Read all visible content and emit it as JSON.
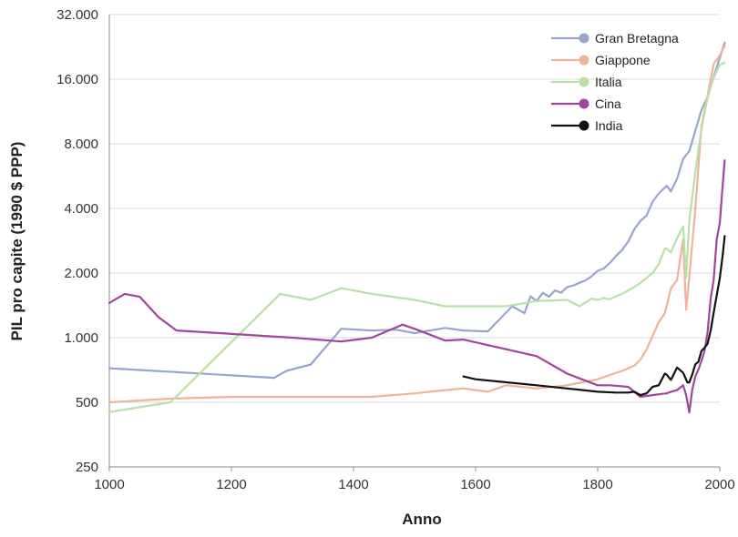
{
  "chart_data": {
    "type": "line",
    "title": "",
    "xlabel": "Anno",
    "ylabel": "PIL pro capite (1990 $ PPP)",
    "xlim": [
      1000,
      2000
    ],
    "ylim": [
      250,
      32000
    ],
    "y_scale": "log2",
    "x_ticks": [
      1000,
      1200,
      1400,
      1600,
      1800,
      2000
    ],
    "x_tick_labels": [
      "1000",
      "1200",
      "1400",
      "1600",
      "1800",
      "2000"
    ],
    "y_ticks": [
      250,
      500,
      1000,
      2000,
      4000,
      8000,
      16000,
      32000
    ],
    "y_tick_labels": [
      "250",
      "500",
      "1.000",
      "2.000",
      "4.000",
      "8.000",
      "16.000",
      "32.000"
    ],
    "grid": "horizontal",
    "legend_position": "top-right",
    "series": [
      {
        "name": "Gran Bretagna",
        "color": "#98a5cf",
        "points": [
          [
            1000,
            720
          ],
          [
            1270,
            650
          ],
          [
            1290,
            700
          ],
          [
            1330,
            750
          ],
          [
            1380,
            1100
          ],
          [
            1430,
            1080
          ],
          [
            1470,
            1090
          ],
          [
            1500,
            1050
          ],
          [
            1550,
            1110
          ],
          [
            1580,
            1080
          ],
          [
            1620,
            1070
          ],
          [
            1660,
            1400
          ],
          [
            1680,
            1300
          ],
          [
            1690,
            1560
          ],
          [
            1700,
            1480
          ],
          [
            1710,
            1620
          ],
          [
            1720,
            1550
          ],
          [
            1730,
            1660
          ],
          [
            1740,
            1620
          ],
          [
            1750,
            1720
          ],
          [
            1760,
            1750
          ],
          [
            1770,
            1800
          ],
          [
            1780,
            1850
          ],
          [
            1790,
            1930
          ],
          [
            1800,
            2050
          ],
          [
            1810,
            2100
          ],
          [
            1820,
            2230
          ],
          [
            1830,
            2400
          ],
          [
            1840,
            2560
          ],
          [
            1850,
            2800
          ],
          [
            1860,
            3200
          ],
          [
            1870,
            3500
          ],
          [
            1880,
            3700
          ],
          [
            1890,
            4300
          ],
          [
            1900,
            4700
          ],
          [
            1910,
            5000
          ],
          [
            1913,
            5100
          ],
          [
            1920,
            4800
          ],
          [
            1930,
            5500
          ],
          [
            1940,
            6800
          ],
          [
            1950,
            7400
          ],
          [
            1960,
            9200
          ],
          [
            1970,
            11500
          ],
          [
            1980,
            13200
          ],
          [
            1990,
            16400
          ],
          [
            2000,
            20100
          ],
          [
            2008,
            23700
          ]
        ]
      },
      {
        "name": "Giappone",
        "color": "#eeb497",
        "points": [
          [
            1000,
            500
          ],
          [
            1100,
            520
          ],
          [
            1200,
            530
          ],
          [
            1300,
            530
          ],
          [
            1430,
            530
          ],
          [
            1500,
            550
          ],
          [
            1550,
            570
          ],
          [
            1580,
            580
          ],
          [
            1620,
            560
          ],
          [
            1650,
            600
          ],
          [
            1700,
            580
          ],
          [
            1750,
            600
          ],
          [
            1800,
            640
          ],
          [
            1820,
            670
          ],
          [
            1840,
            700
          ],
          [
            1860,
            740
          ],
          [
            1870,
            790
          ],
          [
            1880,
            880
          ],
          [
            1890,
            1020
          ],
          [
            1900,
            1180
          ],
          [
            1910,
            1300
          ],
          [
            1920,
            1700
          ],
          [
            1930,
            1850
          ],
          [
            1940,
            2870
          ],
          [
            1945,
            1350
          ],
          [
            1950,
            1920
          ],
          [
            1960,
            3990
          ],
          [
            1970,
            9700
          ],
          [
            1980,
            13400
          ],
          [
            1990,
            18800
          ],
          [
            2000,
            20700
          ],
          [
            2008,
            22800
          ]
        ]
      },
      {
        "name": "Italia",
        "color": "#b9e0a8",
        "points": [
          [
            1000,
            450
          ],
          [
            1100,
            500
          ],
          [
            1280,
            1600
          ],
          [
            1330,
            1500
          ],
          [
            1380,
            1700
          ],
          [
            1430,
            1600
          ],
          [
            1500,
            1500
          ],
          [
            1550,
            1400
          ],
          [
            1600,
            1400
          ],
          [
            1650,
            1400
          ],
          [
            1700,
            1480
          ],
          [
            1750,
            1500
          ],
          [
            1770,
            1400
          ],
          [
            1790,
            1520
          ],
          [
            1800,
            1500
          ],
          [
            1810,
            1530
          ],
          [
            1820,
            1510
          ],
          [
            1830,
            1560
          ],
          [
            1840,
            1600
          ],
          [
            1850,
            1660
          ],
          [
            1860,
            1720
          ],
          [
            1870,
            1800
          ],
          [
            1880,
            1900
          ],
          [
            1890,
            2000
          ],
          [
            1900,
            2200
          ],
          [
            1910,
            2600
          ],
          [
            1913,
            2600
          ],
          [
            1920,
            2500
          ],
          [
            1930,
            2900
          ],
          [
            1940,
            3300
          ],
          [
            1945,
            1900
          ],
          [
            1950,
            3500
          ],
          [
            1960,
            5900
          ],
          [
            1970,
            9400
          ],
          [
            1980,
            13100
          ],
          [
            1990,
            16300
          ],
          [
            2000,
            18700
          ],
          [
            2008,
            19100
          ]
        ]
      },
      {
        "name": "Cina",
        "color": "#a2459c",
        "points": [
          [
            1000,
            1450
          ],
          [
            1025,
            1600
          ],
          [
            1050,
            1550
          ],
          [
            1080,
            1250
          ],
          [
            1110,
            1080
          ],
          [
            1300,
            1000
          ],
          [
            1380,
            960
          ],
          [
            1430,
            1000
          ],
          [
            1480,
            1150
          ],
          [
            1500,
            1100
          ],
          [
            1550,
            970
          ],
          [
            1580,
            980
          ],
          [
            1700,
            820
          ],
          [
            1750,
            680
          ],
          [
            1800,
            600
          ],
          [
            1820,
            600
          ],
          [
            1850,
            590
          ],
          [
            1870,
            530
          ],
          [
            1890,
            540
          ],
          [
            1900,
            545
          ],
          [
            1913,
            550
          ],
          [
            1920,
            560
          ],
          [
            1930,
            570
          ],
          [
            1940,
            600
          ],
          [
            1945,
            540
          ],
          [
            1950,
            448
          ],
          [
            1955,
            575
          ],
          [
            1960,
            660
          ],
          [
            1965,
            710
          ],
          [
            1970,
            780
          ],
          [
            1975,
            870
          ],
          [
            1980,
            1060
          ],
          [
            1985,
            1520
          ],
          [
            1990,
            1860
          ],
          [
            1995,
            2860
          ],
          [
            2000,
            3420
          ],
          [
            2005,
            5200
          ],
          [
            2008,
            6700
          ]
        ]
      },
      {
        "name": "India",
        "color": "#111111",
        "points": [
          [
            1580,
            660
          ],
          [
            1600,
            640
          ],
          [
            1650,
            620
          ],
          [
            1700,
            600
          ],
          [
            1750,
            580
          ],
          [
            1800,
            560
          ],
          [
            1830,
            555
          ],
          [
            1850,
            555
          ],
          [
            1860,
            560
          ],
          [
            1870,
            540
          ],
          [
            1880,
            550
          ],
          [
            1890,
            590
          ],
          [
            1900,
            600
          ],
          [
            1910,
            680
          ],
          [
            1913,
            673
          ],
          [
            1920,
            635
          ],
          [
            1930,
            726
          ],
          [
            1940,
            686
          ],
          [
            1947,
            618
          ],
          [
            1950,
            619
          ],
          [
            1955,
            676
          ],
          [
            1960,
            753
          ],
          [
            1965,
            771
          ],
          [
            1970,
            868
          ],
          [
            1975,
            897
          ],
          [
            1980,
            938
          ],
          [
            1985,
            1079
          ],
          [
            1990,
            1309
          ],
          [
            1995,
            1568
          ],
          [
            2000,
            1892
          ],
          [
            2005,
            2444
          ],
          [
            2008,
            2975
          ]
        ]
      }
    ]
  }
}
